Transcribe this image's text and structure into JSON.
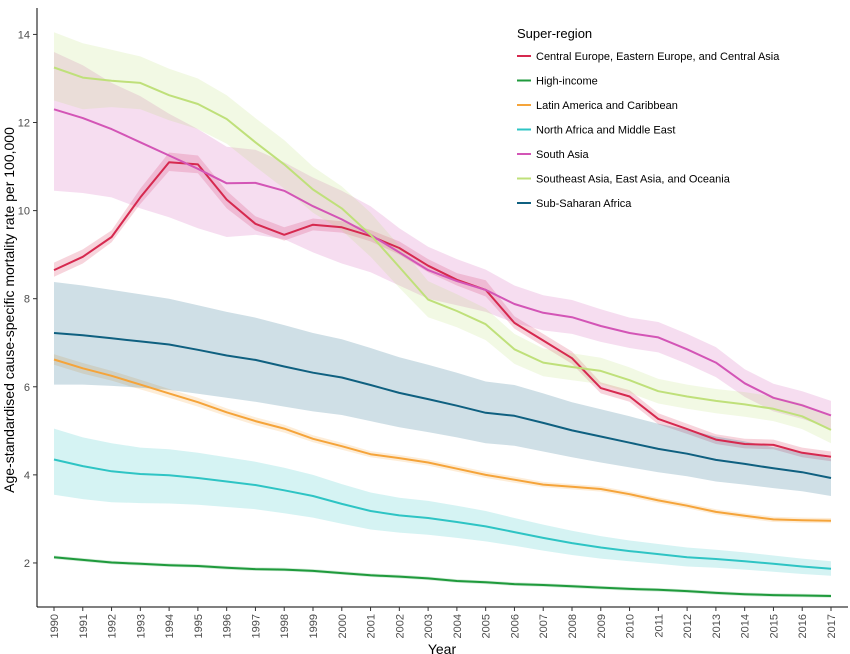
{
  "chart_data": {
    "type": "line",
    "title": "",
    "xlabel": "Year",
    "ylabel": "Age-standardised cause-specific mortality rate per 100,000",
    "xlim": [
      1990,
      2017
    ],
    "ylim": [
      1,
      14.6
    ],
    "yticks": [
      2,
      4,
      6,
      8,
      10,
      12,
      14
    ],
    "x": [
      1990,
      1991,
      1992,
      1993,
      1994,
      1995,
      1996,
      1997,
      1998,
      1999,
      2000,
      2001,
      2002,
      2003,
      2004,
      2005,
      2006,
      2007,
      2008,
      2009,
      2010,
      2011,
      2012,
      2013,
      2014,
      2015,
      2016,
      2017
    ],
    "x_tick_labels": [
      "1990",
      "1991",
      "1992",
      "1993",
      "1994",
      "1995",
      "1996",
      "1997",
      "1998",
      "1999",
      "2000",
      "2001",
      "2002",
      "2003",
      "2004",
      "2005",
      "2006",
      "2007",
      "2008",
      "2009",
      "2010",
      "2011",
      "2012",
      "2013",
      "2014",
      "2015",
      "2016",
      "2017"
    ],
    "grid": false,
    "legend": {
      "title": "Super-region",
      "position": "top-right"
    },
    "series": [
      {
        "name": "Central Europe, Eastern Europe, and Central Asia",
        "color": "#d6294f",
        "values": [
          8.65,
          8.95,
          9.4,
          10.3,
          11.1,
          11.05,
          10.25,
          9.7,
          9.45,
          9.68,
          9.62,
          9.42,
          9.15,
          8.75,
          8.43,
          8.2,
          7.45,
          7.05,
          6.65,
          5.97,
          5.78,
          5.27,
          5.04,
          4.8,
          4.7,
          4.68,
          4.5,
          4.41
        ],
        "lower": [
          8.5,
          8.8,
          9.28,
          10.15,
          10.9,
          10.85,
          10.05,
          9.55,
          9.32,
          9.55,
          9.5,
          9.3,
          9.0,
          8.6,
          8.3,
          8.05,
          7.32,
          6.92,
          6.52,
          5.85,
          5.66,
          5.15,
          4.93,
          4.7,
          4.6,
          4.58,
          4.4,
          4.31
        ],
        "upper": [
          8.82,
          9.12,
          9.55,
          10.5,
          11.32,
          11.25,
          10.45,
          9.87,
          9.62,
          9.82,
          9.76,
          9.56,
          9.3,
          8.9,
          8.58,
          8.42,
          7.6,
          7.2,
          6.8,
          6.1,
          5.92,
          5.4,
          5.16,
          4.92,
          4.82,
          4.8,
          4.62,
          4.53
        ]
      },
      {
        "name": "High-income",
        "color": "#1f9a3c",
        "values": [
          2.13,
          2.07,
          2.01,
          1.98,
          1.95,
          1.93,
          1.89,
          1.86,
          1.85,
          1.82,
          1.77,
          1.72,
          1.69,
          1.65,
          1.59,
          1.56,
          1.52,
          1.5,
          1.47,
          1.44,
          1.41,
          1.39,
          1.36,
          1.32,
          1.29,
          1.27,
          1.26,
          1.25
        ],
        "lower": [
          2.09,
          2.03,
          1.97,
          1.94,
          1.91,
          1.89,
          1.85,
          1.82,
          1.81,
          1.78,
          1.73,
          1.68,
          1.65,
          1.61,
          1.55,
          1.52,
          1.48,
          1.46,
          1.43,
          1.4,
          1.37,
          1.35,
          1.32,
          1.28,
          1.25,
          1.23,
          1.22,
          1.21
        ],
        "upper": [
          2.17,
          2.11,
          2.05,
          2.02,
          1.99,
          1.97,
          1.93,
          1.9,
          1.89,
          1.86,
          1.81,
          1.76,
          1.73,
          1.69,
          1.63,
          1.6,
          1.56,
          1.54,
          1.51,
          1.48,
          1.45,
          1.43,
          1.4,
          1.36,
          1.33,
          1.31,
          1.3,
          1.29
        ]
      },
      {
        "name": "Latin America and Caribbean",
        "color": "#f5a43a",
        "values": [
          6.62,
          6.42,
          6.25,
          6.05,
          5.85,
          5.65,
          5.42,
          5.22,
          5.05,
          4.82,
          4.65,
          4.47,
          4.38,
          4.28,
          4.14,
          4.0,
          3.89,
          3.78,
          3.73,
          3.68,
          3.56,
          3.42,
          3.3,
          3.16,
          3.07,
          2.99,
          2.97,
          2.96
        ],
        "lower": [
          6.5,
          6.3,
          6.14,
          5.94,
          5.75,
          5.55,
          5.33,
          5.13,
          4.96,
          4.74,
          4.57,
          4.4,
          4.31,
          4.21,
          4.07,
          3.93,
          3.82,
          3.72,
          3.67,
          3.62,
          3.5,
          3.36,
          3.24,
          3.1,
          3.01,
          2.93,
          2.91,
          2.9
        ],
        "upper": [
          6.74,
          6.54,
          6.36,
          6.16,
          5.95,
          5.75,
          5.51,
          5.31,
          5.14,
          4.9,
          4.73,
          4.54,
          4.45,
          4.35,
          4.21,
          4.07,
          3.96,
          3.84,
          3.79,
          3.74,
          3.62,
          3.48,
          3.36,
          3.22,
          3.13,
          3.05,
          3.03,
          3.02
        ]
      },
      {
        "name": "North Africa and Middle East",
        "color": "#2ec4c4",
        "values": [
          4.35,
          4.2,
          4.08,
          4.02,
          3.99,
          3.93,
          3.85,
          3.77,
          3.65,
          3.52,
          3.34,
          3.18,
          3.08,
          3.02,
          2.93,
          2.83,
          2.7,
          2.57,
          2.45,
          2.35,
          2.27,
          2.2,
          2.13,
          2.09,
          2.04,
          1.98,
          1.92,
          1.87
        ],
        "lower": [
          3.55,
          3.45,
          3.38,
          3.36,
          3.35,
          3.32,
          3.27,
          3.22,
          3.13,
          3.03,
          2.89,
          2.76,
          2.69,
          2.64,
          2.57,
          2.49,
          2.39,
          2.28,
          2.18,
          2.1,
          2.04,
          1.98,
          1.92,
          1.89,
          1.85,
          1.8,
          1.75,
          1.71
        ],
        "upper": [
          5.05,
          4.85,
          4.72,
          4.62,
          4.58,
          4.5,
          4.4,
          4.3,
          4.16,
          4.0,
          3.79,
          3.6,
          3.48,
          3.41,
          3.3,
          3.18,
          3.02,
          2.87,
          2.73,
          2.61,
          2.51,
          2.43,
          2.35,
          2.3,
          2.24,
          2.17,
          2.1,
          2.04
        ]
      },
      {
        "name": "South Asia",
        "color": "#d355b6",
        "values": [
          12.3,
          12.1,
          11.85,
          11.55,
          11.25,
          10.95,
          10.62,
          10.63,
          10.45,
          10.1,
          9.8,
          9.45,
          9.05,
          8.65,
          8.4,
          8.2,
          7.88,
          7.68,
          7.58,
          7.38,
          7.22,
          7.12,
          6.85,
          6.55,
          6.08,
          5.75,
          5.58,
          5.35
        ],
        "lower": [
          10.45,
          10.4,
          10.3,
          10.05,
          9.85,
          9.6,
          9.4,
          9.45,
          9.35,
          9.05,
          8.8,
          8.6,
          8.3,
          8.0,
          7.85,
          7.7,
          7.45,
          7.28,
          7.2,
          7.02,
          6.88,
          6.78,
          6.52,
          6.22,
          5.77,
          5.44,
          5.27,
          5.05
        ],
        "upper": [
          13.6,
          13.3,
          12.9,
          12.6,
          12.2,
          11.85,
          11.45,
          11.38,
          11.1,
          10.75,
          10.45,
          10.1,
          9.6,
          9.18,
          8.9,
          8.66,
          8.3,
          8.08,
          7.97,
          7.76,
          7.57,
          7.47,
          7.2,
          6.9,
          6.4,
          6.07,
          5.9,
          5.68
        ]
      },
      {
        "name": "Southeast Asia, East Asia, and Oceania",
        "color": "#bfe07a",
        "values": [
          13.25,
          13.02,
          12.95,
          12.9,
          12.62,
          12.42,
          12.08,
          11.55,
          11.05,
          10.48,
          10.05,
          9.45,
          8.72,
          7.98,
          7.72,
          7.42,
          6.85,
          6.55,
          6.45,
          6.36,
          6.15,
          5.9,
          5.78,
          5.68,
          5.6,
          5.5,
          5.33,
          5.02
        ],
        "lower": [
          12.5,
          12.3,
          12.35,
          12.3,
          12.05,
          11.85,
          11.52,
          11.0,
          10.5,
          9.95,
          9.55,
          8.95,
          8.25,
          7.58,
          7.35,
          7.06,
          6.52,
          6.24,
          6.15,
          6.06,
          5.86,
          5.62,
          5.5,
          5.4,
          5.32,
          5.22,
          5.04,
          4.72
        ],
        "upper": [
          14.05,
          13.8,
          13.65,
          13.5,
          13.22,
          13.0,
          12.62,
          12.1,
          11.6,
          11.0,
          10.55,
          9.95,
          9.2,
          8.4,
          8.1,
          7.78,
          7.2,
          6.87,
          6.76,
          6.66,
          6.44,
          6.18,
          6.05,
          5.95,
          5.88,
          5.78,
          5.62,
          5.32
        ]
      },
      {
        "name": "Sub-Saharan Africa",
        "color": "#0f6080",
        "values": [
          7.22,
          7.17,
          7.1,
          7.03,
          6.96,
          6.84,
          6.71,
          6.61,
          6.46,
          6.32,
          6.21,
          6.04,
          5.86,
          5.72,
          5.57,
          5.41,
          5.34,
          5.18,
          5.01,
          4.87,
          4.73,
          4.59,
          4.48,
          4.34,
          4.25,
          4.15,
          4.06,
          3.93
        ],
        "lower": [
          6.05,
          6.05,
          6.02,
          5.98,
          5.93,
          5.84,
          5.75,
          5.66,
          5.55,
          5.44,
          5.36,
          5.22,
          5.08,
          4.97,
          4.85,
          4.72,
          4.66,
          4.53,
          4.4,
          4.28,
          4.17,
          4.06,
          3.97,
          3.85,
          3.78,
          3.7,
          3.63,
          3.52
        ],
        "upper": [
          8.38,
          8.3,
          8.2,
          8.1,
          8.0,
          7.85,
          7.7,
          7.57,
          7.4,
          7.22,
          7.08,
          6.88,
          6.67,
          6.5,
          6.32,
          6.12,
          6.04,
          5.85,
          5.65,
          5.49,
          5.33,
          5.16,
          5.03,
          4.87,
          4.76,
          4.63,
          4.52,
          4.37
        ]
      }
    ]
  }
}
